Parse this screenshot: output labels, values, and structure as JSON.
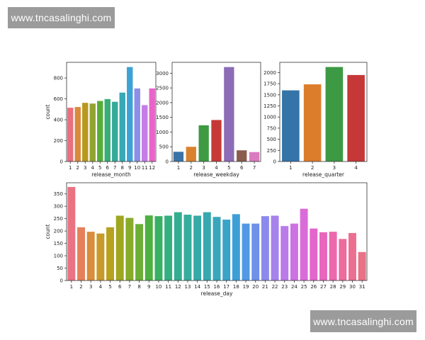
{
  "watermarks": {
    "top": "www.tncasalinghi.com",
    "bottom": "www.tncasalinghi.com"
  },
  "chart_data": [
    {
      "type": "bar",
      "xlabel": "release_month",
      "ylabel": "count",
      "categories": [
        "1",
        "2",
        "3",
        "4",
        "5",
        "6",
        "7",
        "8",
        "9",
        "10",
        "11",
        "12"
      ],
      "values": [
        515,
        522,
        562,
        555,
        580,
        598,
        572,
        660,
        905,
        700,
        540,
        700
      ],
      "ylim": [
        0,
        950
      ],
      "yticks": [
        0,
        200,
        400,
        600,
        800
      ],
      "colors": [
        "#ea6f7f",
        "#d98a3d",
        "#b9981f",
        "#92a331",
        "#58ad3a",
        "#35ae77",
        "#35aa98",
        "#37a8b4",
        "#3ea2d6",
        "#8d8ee8",
        "#c67ce6",
        "#e864c9"
      ]
    },
    {
      "type": "bar",
      "xlabel": "release_weekday",
      "ylabel": "",
      "categories": [
        "1",
        "2",
        "3",
        "4",
        "5",
        "6",
        "7"
      ],
      "values": [
        330,
        500,
        1230,
        1410,
        3210,
        380,
        320
      ],
      "ylim": [
        0,
        3370
      ],
      "yticks": [
        0,
        500,
        1000,
        1500,
        2000,
        2500,
        3000
      ],
      "colors": [
        "#3b73a8",
        "#d9812d",
        "#3f9a44",
        "#c53a36",
        "#8c6cb6",
        "#8a5d4f",
        "#da7bc0"
      ]
    },
    {
      "type": "bar",
      "xlabel": "release_quarter",
      "ylabel": "",
      "categories": [
        "1",
        "2",
        "3",
        "4"
      ],
      "values": [
        1600,
        1735,
        2125,
        1945
      ],
      "ylim": [
        0,
        2230
      ],
      "yticks": [
        0,
        250,
        500,
        750,
        1000,
        1250,
        1500,
        1750,
        2000
      ],
      "colors": [
        "#3574a8",
        "#dc7d2c",
        "#3c9944",
        "#c53837"
      ]
    },
    {
      "type": "bar",
      "xlabel": "release_day",
      "ylabel": "count",
      "categories": [
        "1",
        "2",
        "3",
        "4",
        "5",
        "6",
        "7",
        "8",
        "9",
        "10",
        "11",
        "12",
        "13",
        "14",
        "15",
        "16",
        "17",
        "18",
        "19",
        "20",
        "21",
        "22",
        "23",
        "24",
        "25",
        "26",
        "27",
        "28",
        "29",
        "30",
        "31"
      ],
      "values": [
        378,
        215,
        197,
        190,
        215,
        262,
        253,
        228,
        263,
        260,
        262,
        276,
        266,
        262,
        276,
        257,
        246,
        268,
        230,
        230,
        260,
        262,
        220,
        230,
        290,
        210,
        195,
        197,
        168,
        192,
        115
      ],
      "ylim": [
        0,
        395
      ],
      "yticks": [
        0,
        50,
        100,
        150,
        200,
        250,
        300,
        350
      ],
      "colors": [
        "#ea7383",
        "#e6805a",
        "#d98e3b",
        "#c89a2a",
        "#b7a11f",
        "#a0a71f",
        "#88ab2a",
        "#6cae37",
        "#4eb040",
        "#38b063",
        "#35ae80",
        "#35ad90",
        "#36ac9c",
        "#36aaa6",
        "#37a8b0",
        "#38a6bb",
        "#3aa3c8",
        "#3e9fd7",
        "#5199e4",
        "#6d92ea",
        "#8b8aec",
        "#a682ec",
        "#bb7ae9",
        "#cc72e3",
        "#da6cd9",
        "#e366cc",
        "#e866bd",
        "#eb69ad",
        "#ec6c9e",
        "#ec6f91",
        "#ea7286"
      ]
    }
  ]
}
